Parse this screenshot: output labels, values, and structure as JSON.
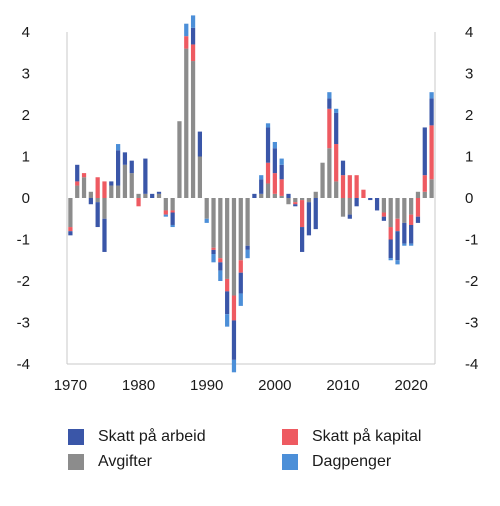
{
  "chart_data": {
    "type": "bar",
    "stacked": true,
    "x_start": 1970,
    "x_end": 2023,
    "ylim": [
      -4,
      4
    ],
    "yticks": [
      "4",
      "3",
      "2",
      "1",
      "0",
      "-1",
      "-2",
      "-3",
      "-4"
    ],
    "xticks": [
      "1970",
      "1980",
      "1990",
      "2000",
      "2010",
      "2020"
    ],
    "xtick_values": [
      1970,
      1980,
      1990,
      2000,
      2010,
      2020
    ],
    "ytick_values": [
      4,
      3,
      2,
      1,
      0,
      -1,
      -2,
      -3,
      -4
    ],
    "legend_position": "bottom",
    "colors": {
      "skatt_arbeid": "#3a56a8",
      "avgifter": "#8c8c8c",
      "skatt_kapital": "#ee5a61",
      "dagpenger": "#4c8fd8"
    },
    "series": [
      {
        "key": "avgifter",
        "name": "Avgifter",
        "values": [
          -0.7,
          0.3,
          0.5,
          0.15,
          -0.1,
          -0.5,
          0.3,
          0.3,
          0.8,
          0.6,
          0.1,
          0.1,
          0,
          0.1,
          -0.3,
          -0.3,
          1.85,
          3.6,
          3.3,
          1.0,
          -0.5,
          -1.2,
          -1.45,
          -1.95,
          -2.35,
          -1.5,
          -1.15,
          0,
          0.1,
          0.35,
          0.1,
          0.05,
          -0.15,
          -0.1,
          -0.05,
          -0.1,
          0.15,
          0.85,
          1.2,
          0.4,
          -0.45,
          -0.4,
          0,
          0,
          0,
          0,
          -0.35,
          -0.7,
          -0.5,
          -0.6,
          -0.4,
          0.15,
          0.15,
          0.45
        ]
      },
      {
        "key": "skatt_kapital",
        "name": "Skatt på kapital",
        "values": [
          -0.1,
          0.1,
          0.1,
          0,
          0.5,
          0.4,
          0,
          0,
          0,
          0,
          -0.2,
          0,
          0,
          0,
          -0.1,
          -0.05,
          0,
          0.3,
          0.4,
          0,
          0,
          -0.05,
          -0.1,
          -0.3,
          -0.6,
          -0.3,
          0,
          0,
          0,
          0.5,
          0.5,
          0.4,
          0,
          -0.05,
          -0.65,
          0,
          0,
          0,
          0.95,
          0.9,
          0.55,
          0.55,
          0.55,
          0.2,
          0,
          0,
          -0.1,
          -0.3,
          -0.3,
          0,
          -0.25,
          -0.45,
          0.4,
          1.3
        ]
      },
      {
        "key": "skatt_arbeid",
        "name": "Skatt på arbeid",
        "values": [
          -0.1,
          0.4,
          0,
          -0.15,
          -0.6,
          -0.8,
          0.1,
          0.85,
          0.3,
          0.3,
          0,
          0.85,
          0.1,
          0.05,
          0,
          -0.3,
          0,
          0,
          0.4,
          0.6,
          0,
          -0.1,
          -0.2,
          -0.55,
          -0.95,
          -0.5,
          -0.1,
          0.1,
          0.35,
          0.85,
          0.6,
          0.35,
          0.1,
          -0.05,
          -0.6,
          -0.8,
          -0.75,
          0,
          0.25,
          0.75,
          0.35,
          -0.1,
          -0.2,
          0,
          -0.05,
          -0.3,
          -0.1,
          -0.45,
          -0.7,
          -0.5,
          -0.45,
          -0.15,
          1.15,
          0.65
        ]
      },
      {
        "key": "dagpenger",
        "name": "Dagpenger",
        "values": [
          0,
          0,
          0,
          0,
          0,
          0,
          0,
          0.15,
          0,
          0,
          0,
          0,
          0,
          0,
          -0.05,
          -0.05,
          0,
          0.3,
          0.3,
          0,
          -0.1,
          -0.2,
          -0.25,
          -0.3,
          -0.3,
          -0.3,
          -0.2,
          0,
          0.1,
          0.1,
          0.15,
          0.15,
          0,
          0,
          0,
          0,
          0,
          0,
          0.15,
          0.1,
          0,
          0,
          0,
          0,
          0,
          0,
          0,
          -0.05,
          -0.1,
          -0.05,
          -0.05,
          0,
          0,
          0.15
        ]
      }
    ],
    "legend": [
      {
        "key": "skatt_arbeid",
        "label": "Skatt på arbeid"
      },
      {
        "key": "skatt_kapital",
        "label": "Skatt på kapital"
      },
      {
        "key": "avgifter",
        "label": "Avgifter"
      },
      {
        "key": "dagpenger",
        "label": "Dagpenger"
      }
    ]
  }
}
